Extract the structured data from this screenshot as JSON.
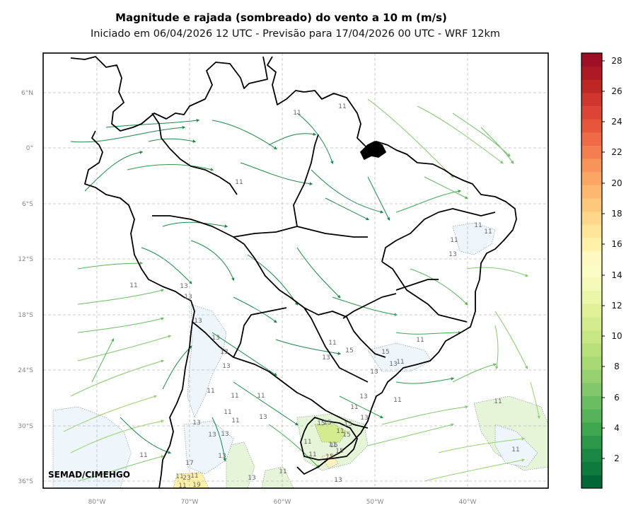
{
  "title": "Magnitude e rajada (sombreado) do vento a 10 m (m/s)",
  "subtitle": "Iniciado em 06/04/2026 12 UTC - Previsão para 17/04/2026 00 UTC - WRF 12km",
  "credit": "SEMAD/CIMEHGO",
  "lat_ticks": [
    "6°N",
    "0°",
    "6°S",
    "12°S",
    "18°S",
    "24°S",
    "30°S",
    "36°S"
  ],
  "lon_ticks": [
    "80°W",
    "70°W",
    "60°W",
    "50°W",
    "40°W"
  ],
  "colorbar": {
    "ticks": [
      "2",
      "4",
      "6",
      "8",
      "10",
      "12",
      "14",
      "16",
      "18",
      "20",
      "22",
      "24",
      "26",
      "28"
    ],
    "colors": [
      "#006837",
      "#0f7a3d",
      "#1a8744",
      "#2a9749",
      "#3fa650",
      "#56b35a",
      "#6bbd62",
      "#82c76b",
      "#97d16f",
      "#a8d973",
      "#b8e07a",
      "#c7e684",
      "#d4ec8d",
      "#e1f197",
      "#ecf6a8",
      "#f4f9b8",
      "#fbfcc4",
      "#fef9c0",
      "#fff1a8",
      "#fee59a",
      "#fed78a",
      "#fec87c",
      "#fdb770",
      "#fca665",
      "#f8935a",
      "#f47e4f",
      "#ef6a46",
      "#e8553d",
      "#dc4535",
      "#cf362e",
      "#bf2727",
      "#ac1a26",
      "#9e0f26"
    ]
  },
  "contour_labels": [
    "11",
    "11",
    "11",
    "11",
    "13",
    "13",
    "13",
    "13",
    "11",
    "11",
    "11",
    "13",
    "13",
    "13",
    "11",
    "11",
    "11",
    "11",
    "15",
    "13",
    "15",
    "13",
    "11",
    "11",
    "13",
    "11",
    "13",
    "15",
    "13",
    "15",
    "13",
    "13",
    "11",
    "11",
    "13",
    "13",
    "11",
    "11",
    "15",
    "11",
    "11",
    "15",
    "15",
    "15",
    "11",
    "15",
    "13",
    "13",
    "11",
    "11",
    "11",
    "17",
    "23",
    "11",
    "19",
    "11",
    "13",
    "11",
    "11"
  ]
}
